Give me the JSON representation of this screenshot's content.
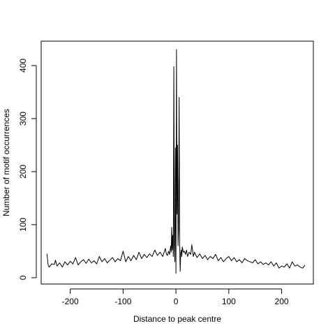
{
  "chart_data": {
    "type": "line",
    "title": "",
    "xlabel": "Distance to peak centre",
    "ylabel": "Number of motif occurrences",
    "xlim": [
      -250,
      250
    ],
    "ylim": [
      0,
      440
    ],
    "x_ticks": [
      -200,
      -100,
      0,
      100,
      200
    ],
    "x_tick_labels": [
      "-200",
      "-100",
      "0",
      "100",
      "200"
    ],
    "y_ticks": [
      0,
      100,
      200,
      300,
      400
    ],
    "y_tick_labels": [
      "0",
      "100",
      "200",
      "300",
      "400"
    ],
    "grid": false,
    "series": [
      {
        "color": "#000000",
        "x": [
          -244,
          -242,
          -240,
          -235,
          -230,
          -228,
          -225,
          -220,
          -215,
          -210,
          -205,
          -200,
          -195,
          -190,
          -185,
          -180,
          -175,
          -170,
          -165,
          -160,
          -155,
          -150,
          -145,
          -140,
          -135,
          -130,
          -125,
          -120,
          -115,
          -110,
          -105,
          -100,
          -95,
          -90,
          -85,
          -80,
          -75,
          -70,
          -65,
          -60,
          -55,
          -50,
          -45,
          -40,
          -35,
          -30,
          -25,
          -20,
          -18,
          -16,
          -14,
          -12,
          -10,
          -9,
          -8,
          -7,
          -6,
          -5,
          -4,
          -3,
          -2,
          -1,
          0,
          1,
          2,
          3,
          4,
          5,
          6,
          7,
          8,
          9,
          10,
          11,
          12,
          14,
          16,
          18,
          20,
          22,
          25,
          28,
          30,
          33,
          35,
          40,
          45,
          50,
          55,
          60,
          65,
          70,
          75,
          80,
          85,
          90,
          95,
          100,
          105,
          110,
          115,
          120,
          125,
          130,
          135,
          140,
          145,
          150,
          155,
          160,
          165,
          170,
          175,
          180,
          185,
          190,
          195,
          200,
          205,
          210,
          215,
          220,
          225,
          230,
          235,
          240,
          244
        ],
        "y": [
          45,
          25,
          20,
          26,
          25,
          33,
          22,
          28,
          20,
          30,
          24,
          31,
          26,
          38,
          24,
          30,
          34,
          27,
          35,
          28,
          32,
          26,
          40,
          30,
          36,
          28,
          33,
          38,
          30,
          36,
          32,
          50,
          30,
          40,
          32,
          42,
          34,
          48,
          36,
          44,
          38,
          45,
          40,
          52,
          42,
          48,
          40,
          55,
          44,
          42,
          50,
          44,
          60,
          48,
          95,
          52,
          80,
          40,
          398,
          60,
          30,
          245,
          8,
          430,
          120,
          250,
          60,
          90,
          340,
          70,
          12,
          45,
          52,
          40,
          58,
          48,
          50,
          44,
          52,
          40,
          48,
          44,
          62,
          40,
          48,
          38,
          45,
          36,
          42,
          34,
          40,
          36,
          44,
          32,
          38,
          30,
          36,
          40,
          32,
          38,
          30,
          34,
          28,
          36,
          32,
          30,
          28,
          34,
          26,
          30,
          25,
          28,
          24,
          30,
          22,
          28,
          18,
          22,
          20,
          26,
          18,
          30,
          22,
          24,
          20,
          18,
          24
        ]
      }
    ]
  }
}
